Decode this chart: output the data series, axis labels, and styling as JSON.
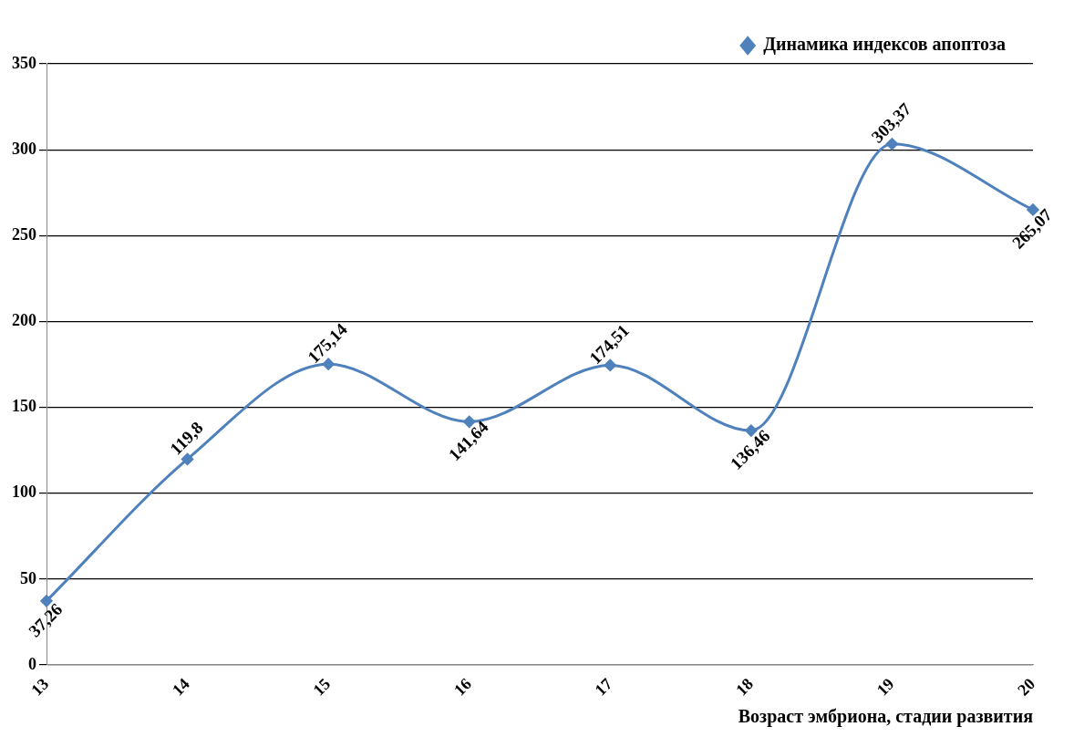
{
  "chart_data": {
    "type": "line",
    "xlabel": "Возраст эмбриона, стадии развития",
    "categories": [
      "13",
      "14",
      "15",
      "16",
      "17",
      "18",
      "19",
      "20"
    ],
    "series": [
      {
        "name": "Динамика индексов апоптоза",
        "color": "#4f81bd",
        "values": [
          37.26,
          119.8,
          175.14,
          141.64,
          174.51,
          136.46,
          303.37,
          265.07
        ],
        "value_labels": [
          "37,26",
          "119,8",
          "175,14",
          "141,64",
          "174,51",
          "136,46",
          "303,37",
          "265,07"
        ]
      }
    ],
    "ylim": [
      0,
      350
    ],
    "yticks": [
      0,
      50,
      100,
      150,
      200,
      250,
      300,
      350
    ],
    "grid": "y",
    "legend": "top right",
    "marker": "diamond",
    "line_style": "solid"
  }
}
